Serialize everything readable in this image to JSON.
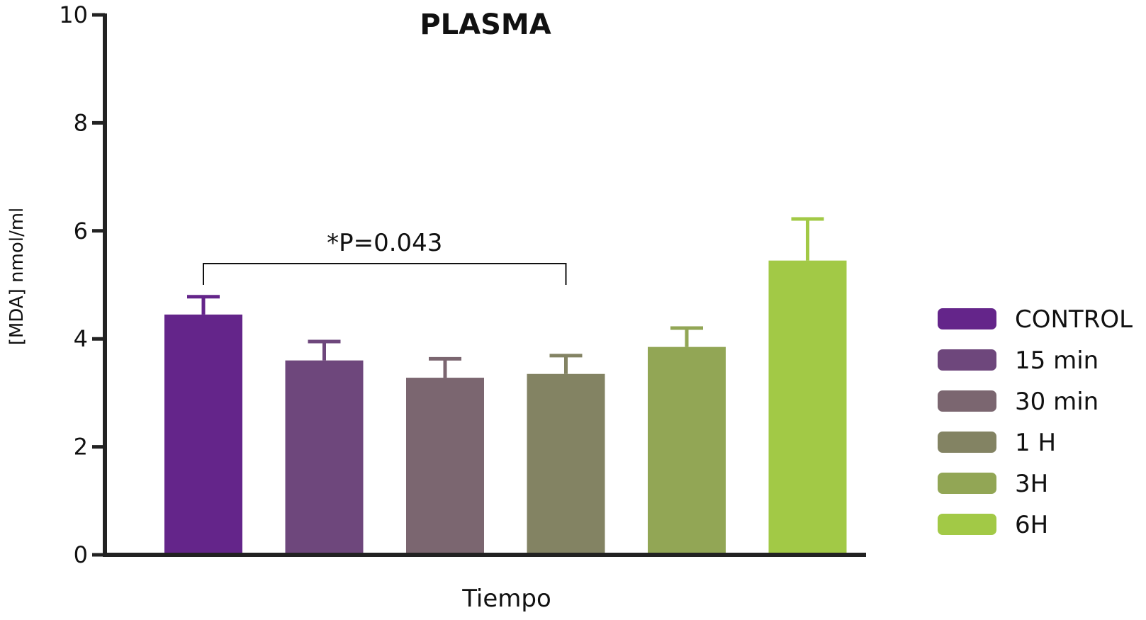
{
  "chart_data": {
    "type": "bar",
    "title": "PLASMA",
    "xlabel": "Tiempo",
    "ylabel": "[MDA] nmol/ml",
    "ylim": [
      0,
      10
    ],
    "yticks": [
      "0",
      "2",
      "4",
      "6",
      "8",
      "10"
    ],
    "categories": [
      "CONTROL",
      "15 min",
      "30 min",
      "1 H",
      "3H",
      "6H"
    ],
    "values": [
      4.45,
      3.6,
      3.28,
      3.35,
      3.85,
      5.45
    ],
    "errors": [
      0.33,
      0.35,
      0.35,
      0.34,
      0.35,
      0.77
    ],
    "colors": [
      "#64258a",
      "#6e477c",
      "#7b6670",
      "#838363",
      "#92a655",
      "#a2c946"
    ],
    "legend_position": "right",
    "grid": false,
    "annotation": {
      "text": "*P=0.043",
      "from": "CONTROL",
      "to": "1 H"
    }
  }
}
